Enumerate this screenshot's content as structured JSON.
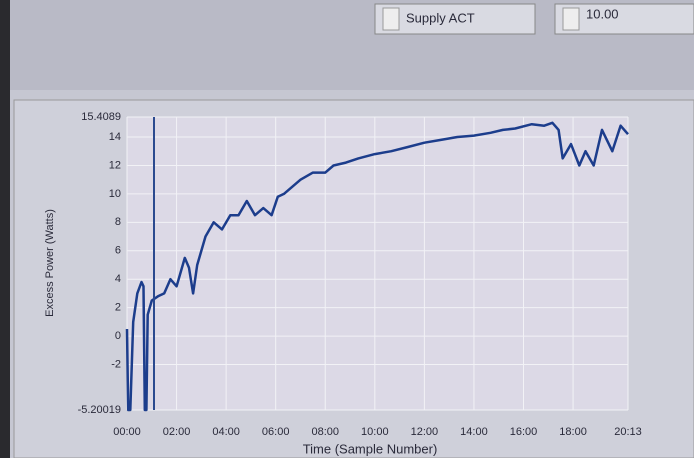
{
  "controls": {
    "channel": "Supply ACT",
    "setting": "10.00"
  },
  "chart_data": {
    "type": "line",
    "y_label": "Excess Power (Watts)",
    "x_label": "Time (Sample Number)",
    "ylim": [
      -5.20019,
      15.4089
    ],
    "yticks": [
      -5.20019,
      -2,
      0,
      2,
      4,
      6,
      8,
      10,
      12,
      14,
      15.4089
    ],
    "xlim": [
      0,
      1213
    ],
    "xticks": [
      {
        "value": 0,
        "label": "00:00"
      },
      {
        "value": 120,
        "label": "02:00"
      },
      {
        "value": 240,
        "label": "04:00"
      },
      {
        "value": 360,
        "label": "06:00"
      },
      {
        "value": 480,
        "label": "08:00"
      },
      {
        "value": 600,
        "label": "10:00"
      },
      {
        "value": 720,
        "label": "12:00"
      },
      {
        "value": 840,
        "label": "14:00"
      },
      {
        "value": 960,
        "label": "16:00"
      },
      {
        "value": 1080,
        "label": "18:00"
      },
      {
        "value": 1213,
        "label": "20:13"
      }
    ],
    "grid": true,
    "x": [
      0,
      3,
      8,
      15,
      25,
      35,
      40,
      43,
      47,
      50,
      60,
      75,
      90,
      105,
      120,
      140,
      150,
      160,
      170,
      190,
      210,
      230,
      250,
      270,
      290,
      310,
      330,
      350,
      365,
      380,
      400,
      420,
      450,
      480,
      500,
      530,
      560,
      600,
      640,
      680,
      720,
      760,
      800,
      840,
      880,
      910,
      940,
      980,
      1010,
      1030,
      1045,
      1055,
      1075,
      1095,
      1110,
      1130,
      1150,
      1175,
      1195,
      1213
    ],
    "series": [
      {
        "color": "#1c3d8c",
        "values": [
          0.5,
          -5.2,
          -5.2,
          1,
          3,
          3.8,
          3.5,
          -5.2,
          -5.2,
          1.5,
          2.5,
          2.8,
          3,
          4,
          3.5,
          5.5,
          4.8,
          3,
          5,
          7,
          8,
          7.5,
          8.5,
          8.5,
          9.5,
          8.5,
          9,
          8.5,
          9.8,
          10,
          10.5,
          11,
          11.5,
          11.5,
          12,
          12.2,
          12.5,
          12.8,
          13,
          13.3,
          13.6,
          13.8,
          14,
          14.1,
          14.3,
          14.5,
          14.6,
          14.9,
          14.8,
          15,
          14.5,
          12.5,
          13.5,
          12,
          13,
          12,
          14.5,
          13,
          14.8,
          14.2
        ]
      }
    ]
  }
}
